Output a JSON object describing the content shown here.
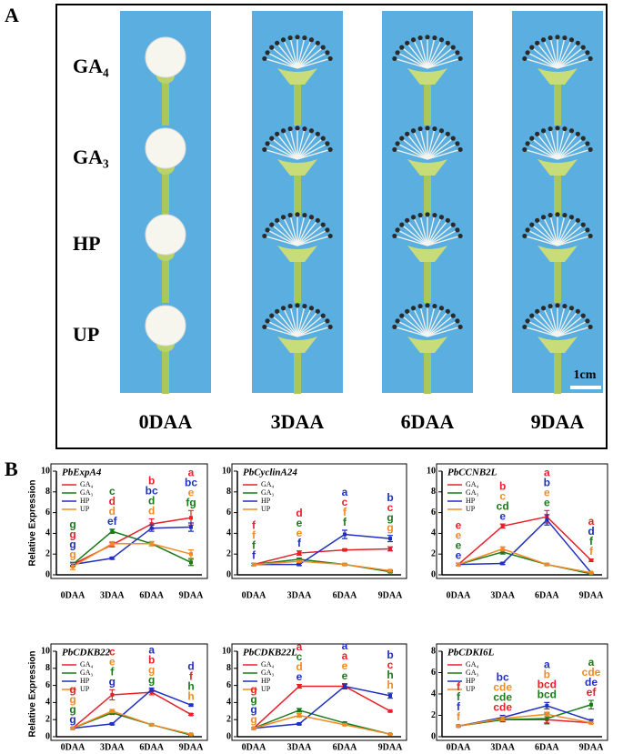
{
  "panel_a": {
    "label": "A",
    "rows": [
      "GA₄",
      "GA₃",
      "HP",
      "UP"
    ],
    "columns": [
      "0DAA",
      "3DAA",
      "6DAA",
      "9DAA"
    ],
    "scale": "1cm"
  },
  "panel_b_label": "B",
  "chart_data": [
    {
      "type": "line",
      "title": "PbExpA4",
      "ylabel": "Relative Expression",
      "categories": [
        "0DAA",
        "3DAA",
        "6DAA",
        "9DAA"
      ],
      "ylim": [
        0,
        10
      ],
      "yticks": [
        0,
        2,
        4,
        6,
        8,
        10
      ],
      "series": [
        {
          "name": "GA₄",
          "color": "#e8202a",
          "values": [
            1,
            2.9,
            4.9,
            5.5
          ],
          "errors": [
            0.2,
            0.2,
            0.5,
            0.7
          ]
        },
        {
          "name": "GA₃",
          "color": "#1a7a1a",
          "values": [
            1,
            4.2,
            3.0,
            1.2
          ],
          "errors": [
            0.2,
            0.2,
            0.2,
            0.3
          ]
        },
        {
          "name": "HP",
          "color": "#1f2fbf",
          "values": [
            1,
            1.6,
            4.5,
            4.6
          ],
          "errors": [
            0.1,
            0.1,
            0.3,
            0.4
          ]
        },
        {
          "name": "UP",
          "color": "#f08a24",
          "values": [
            0.8,
            3.0,
            3.0,
            2.0
          ],
          "errors": [
            0.3,
            0.2,
            0.2,
            0.4
          ]
        }
      ],
      "letters": [
        [
          {
            "text": "g",
            "color": "#1a7a1a"
          },
          {
            "text": "g",
            "color": "#e8202a"
          },
          {
            "text": "g",
            "color": "#1f2fbf"
          },
          {
            "text": "g",
            "color": "#f08a24"
          }
        ],
        [
          {
            "text": "c",
            "color": "#1a7a1a"
          },
          {
            "text": "d",
            "color": "#e8202a"
          },
          {
            "text": "d",
            "color": "#f08a24"
          },
          {
            "text": "ef",
            "color": "#1f2fbf"
          }
        ],
        [
          {
            "text": "b",
            "color": "#e8202a"
          },
          {
            "text": "bc",
            "color": "#1f2fbf"
          },
          {
            "text": "d",
            "color": "#1a7a1a"
          },
          {
            "text": "d",
            "color": "#f08a24"
          }
        ],
        [
          {
            "text": "a",
            "color": "#e8202a"
          },
          {
            "text": "bc",
            "color": "#1f2fbf"
          },
          {
            "text": "e",
            "color": "#f08a24"
          },
          {
            "text": "fg",
            "color": "#1a7a1a"
          }
        ]
      ]
    },
    {
      "type": "line",
      "title": "PbCyclinA24",
      "categories": [
        "0DAA",
        "3DAA",
        "6DAA",
        "9DAA"
      ],
      "ylim": [
        0,
        10
      ],
      "yticks": [
        0,
        2,
        4,
        6,
        8,
        10
      ],
      "series": [
        {
          "name": "GA₄",
          "color": "#e8202a",
          "values": [
            1,
            2.1,
            2.4,
            2.5
          ],
          "errors": [
            0.1,
            0.2,
            0.1,
            0.2
          ]
        },
        {
          "name": "GA₃",
          "color": "#1a7a1a",
          "values": [
            1,
            1.5,
            1.0,
            0.3
          ],
          "errors": [
            0.1,
            0.1,
            0.1,
            0.1
          ]
        },
        {
          "name": "HP",
          "color": "#1f2fbf",
          "values": [
            1,
            1.0,
            3.9,
            3.5
          ],
          "errors": [
            0.1,
            0.1,
            0.4,
            0.3
          ]
        },
        {
          "name": "UP",
          "color": "#f08a24",
          "values": [
            1,
            1.3,
            1.0,
            0.4
          ],
          "errors": [
            0.1,
            0.1,
            0.1,
            0.1
          ]
        }
      ],
      "letters": [
        [
          {
            "text": "f",
            "color": "#e8202a"
          },
          {
            "text": "f",
            "color": "#f08a24"
          },
          {
            "text": "f",
            "color": "#1a7a1a"
          },
          {
            "text": "f",
            "color": "#1f2fbf"
          }
        ],
        [
          {
            "text": "d",
            "color": "#e8202a"
          },
          {
            "text": "e",
            "color": "#1a7a1a"
          },
          {
            "text": "e",
            "color": "#f08a24"
          },
          {
            "text": "f",
            "color": "#1f2fbf"
          }
        ],
        [
          {
            "text": "a",
            "color": "#1f2fbf"
          },
          {
            "text": "c",
            "color": "#e8202a"
          },
          {
            "text": "f",
            "color": "#f08a24"
          },
          {
            "text": "f",
            "color": "#1a7a1a"
          }
        ],
        [
          {
            "text": "b",
            "color": "#1f2fbf"
          },
          {
            "text": "c",
            "color": "#e8202a"
          },
          {
            "text": "g",
            "color": "#1a7a1a"
          },
          {
            "text": "g",
            "color": "#f08a24"
          }
        ]
      ]
    },
    {
      "type": "line",
      "title": "PbCCNB2L",
      "categories": [
        "0DAA",
        "3DAA",
        "6DAA",
        "9DAA"
      ],
      "ylim": [
        0,
        10
      ],
      "yticks": [
        0,
        2,
        4,
        6,
        8,
        10
      ],
      "series": [
        {
          "name": "GA₄",
          "color": "#e8202a",
          "values": [
            1,
            4.7,
            5.6,
            1.4
          ],
          "errors": [
            0.1,
            0.2,
            0.6,
            0.1
          ]
        },
        {
          "name": "GA₃",
          "color": "#1a7a1a",
          "values": [
            1,
            2.2,
            1.0,
            0.1
          ],
          "errors": [
            0.1,
            0.2,
            0.1,
            0.05
          ]
        },
        {
          "name": "HP",
          "color": "#1f2fbf",
          "values": [
            1,
            1.1,
            5.3,
            0.2
          ],
          "errors": [
            0.1,
            0.1,
            0.5,
            0.05
          ]
        },
        {
          "name": "UP",
          "color": "#f08a24",
          "values": [
            1,
            2.5,
            1.0,
            0.2
          ],
          "errors": [
            0.1,
            0.2,
            0.1,
            0.05
          ]
        }
      ],
      "letters": [
        [
          {
            "text": "e",
            "color": "#e8202a"
          },
          {
            "text": "e",
            "color": "#f08a24"
          },
          {
            "text": "e",
            "color": "#1a7a1a"
          },
          {
            "text": "e",
            "color": "#1f2fbf"
          }
        ],
        [
          {
            "text": "b",
            "color": "#e8202a"
          },
          {
            "text": "c",
            "color": "#f08a24"
          },
          {
            "text": "cd",
            "color": "#1a7a1a"
          },
          {
            "text": "e",
            "color": "#1f2fbf"
          }
        ],
        [
          {
            "text": "a",
            "color": "#e8202a"
          },
          {
            "text": "b",
            "color": "#1f2fbf"
          },
          {
            "text": "e",
            "color": "#f08a24"
          },
          {
            "text": "e",
            "color": "#1a7a1a"
          }
        ],
        [
          {
            "text": "a",
            "color": "#e8202a"
          },
          {
            "text": "d",
            "color": "#1f2fbf"
          },
          {
            "text": "f",
            "color": "#1a7a1a"
          },
          {
            "text": "f",
            "color": "#f08a24"
          }
        ]
      ]
    },
    {
      "type": "line",
      "title": "PbCDKB22",
      "ylabel": "Relative Expression",
      "categories": [
        "0DAA",
        "3DAA",
        "6DAA",
        "9DAA"
      ],
      "ylim": [
        0,
        10
      ],
      "yticks": [
        0,
        2,
        4,
        6,
        8,
        10
      ],
      "series": [
        {
          "name": "GA₄",
          "color": "#e8202a",
          "values": [
            1,
            4.9,
            5.2,
            2.6
          ],
          "errors": [
            0.1,
            0.6,
            0.3,
            0.1
          ]
        },
        {
          "name": "GA₃",
          "color": "#1a7a1a",
          "values": [
            1,
            2.8,
            1.4,
            0.2
          ],
          "errors": [
            0.1,
            0.2,
            0.1,
            0.05
          ]
        },
        {
          "name": "HP",
          "color": "#1f2fbf",
          "values": [
            1,
            1.5,
            5.5,
            3.7
          ],
          "errors": [
            0.1,
            0.1,
            0.2,
            0.1
          ]
        },
        {
          "name": "UP",
          "color": "#f08a24",
          "values": [
            1,
            3.0,
            1.4,
            0.3
          ],
          "errors": [
            0.1,
            0.2,
            0.1,
            0.05
          ]
        }
      ],
      "letters": [
        [
          {
            "text": "g",
            "color": "#e8202a"
          },
          {
            "text": "g",
            "color": "#f08a24"
          },
          {
            "text": "g",
            "color": "#1a7a1a"
          },
          {
            "text": "g",
            "color": "#1f2fbf"
          }
        ],
        [
          {
            "text": "c",
            "color": "#e8202a"
          },
          {
            "text": "e",
            "color": "#f08a24"
          },
          {
            "text": "f",
            "color": "#1a7a1a"
          },
          {
            "text": "g",
            "color": "#1f2fbf"
          }
        ],
        [
          {
            "text": "a",
            "color": "#1f2fbf"
          },
          {
            "text": "b",
            "color": "#e8202a"
          },
          {
            "text": "g",
            "color": "#f08a24"
          },
          {
            "text": "g",
            "color": "#1a7a1a"
          }
        ],
        [
          {
            "text": "d",
            "color": "#1f2fbf"
          },
          {
            "text": "f",
            "color": "#e8202a"
          },
          {
            "text": "h",
            "color": "#1a7a1a"
          },
          {
            "text": "h",
            "color": "#f08a24"
          }
        ]
      ]
    },
    {
      "type": "line",
      "title": "PbCDKB22L",
      "categories": [
        "0DAA",
        "3DAA",
        "6DAA",
        "9DAA"
      ],
      "ylim": [
        0,
        10
      ],
      "yticks": [
        0,
        2,
        4,
        6,
        8,
        10
      ],
      "series": [
        {
          "name": "GA₄",
          "color": "#e8202a",
          "values": [
            1,
            5.9,
            5.9,
            3.0
          ],
          "errors": [
            0.1,
            0.2,
            0.2,
            0.1
          ]
        },
        {
          "name": "GA₃",
          "color": "#1a7a1a",
          "values": [
            1,
            3.1,
            1.6,
            0.3
          ],
          "errors": [
            0.1,
            0.2,
            0.1,
            0.05
          ]
        },
        {
          "name": "HP",
          "color": "#1f2fbf",
          "values": [
            1,
            1.5,
            5.9,
            4.8
          ],
          "errors": [
            0.1,
            0.1,
            0.3,
            0.3
          ]
        },
        {
          "name": "UP",
          "color": "#f08a24",
          "values": [
            1,
            2.5,
            1.4,
            0.3
          ],
          "errors": [
            0.1,
            0.2,
            0.1,
            0.05
          ]
        }
      ],
      "letters": [
        [
          {
            "text": "g",
            "color": "#e8202a"
          },
          {
            "text": "g",
            "color": "#1a7a1a"
          },
          {
            "text": "g",
            "color": "#1f2fbf"
          },
          {
            "text": "g",
            "color": "#f08a24"
          }
        ],
        [
          {
            "text": "a",
            "color": "#e8202a"
          },
          {
            "text": "c",
            "color": "#1a7a1a"
          },
          {
            "text": "d",
            "color": "#f08a24"
          },
          {
            "text": "e",
            "color": "#1f2fbf"
          }
        ],
        [
          {
            "text": "a",
            "color": "#1f2fbf"
          },
          {
            "text": "a",
            "color": "#e8202a"
          },
          {
            "text": "e",
            "color": "#f08a24"
          },
          {
            "text": "e",
            "color": "#1a7a1a"
          }
        ],
        [
          {
            "text": "b",
            "color": "#1f2fbf"
          },
          {
            "text": "c",
            "color": "#e8202a"
          },
          {
            "text": "h",
            "color": "#1a7a1a"
          },
          {
            "text": "h",
            "color": "#f08a24"
          }
        ]
      ]
    },
    {
      "type": "line",
      "title": "PbCDKI6L",
      "categories": [
        "0DAA",
        "3DAA",
        "6DAA",
        "9DAA"
      ],
      "ylim": [
        0,
        8
      ],
      "yticks": [
        0,
        2,
        4,
        6,
        8
      ],
      "series": [
        {
          "name": "GA₄",
          "color": "#e8202a",
          "values": [
            1,
            1.6,
            1.6,
            1.3
          ],
          "errors": [
            0.1,
            0.2,
            0.3,
            0.1
          ]
        },
        {
          "name": "GA₃",
          "color": "#1a7a1a",
          "values": [
            1,
            1.6,
            1.7,
            3.0
          ],
          "errors": [
            0.1,
            0.2,
            0.5,
            0.4
          ]
        },
        {
          "name": "HP",
          "color": "#1f2fbf",
          "values": [
            1,
            1.8,
            2.9,
            1.5
          ],
          "errors": [
            0.1,
            0.2,
            0.3,
            0.1
          ]
        },
        {
          "name": "UP",
          "color": "#f08a24",
          "values": [
            1,
            1.7,
            2.1,
            1.3
          ],
          "errors": [
            0.1,
            0.2,
            0.2,
            0.1
          ]
        }
      ],
      "letters": [
        [
          {
            "text": "f",
            "color": "#e8202a"
          },
          {
            "text": "f",
            "color": "#1a7a1a"
          },
          {
            "text": "f",
            "color": "#1f2fbf"
          },
          {
            "text": "f",
            "color": "#f08a24"
          }
        ],
        [
          {
            "text": "bc",
            "color": "#1f2fbf"
          },
          {
            "text": "cde",
            "color": "#f08a24"
          },
          {
            "text": "cde",
            "color": "#1a7a1a"
          },
          {
            "text": "cde",
            "color": "#e8202a"
          }
        ],
        [
          {
            "text": "a",
            "color": "#1f2fbf"
          },
          {
            "text": "b",
            "color": "#f08a24"
          },
          {
            "text": "bcd",
            "color": "#e8202a"
          },
          {
            "text": "bcd",
            "color": "#1a7a1a"
          }
        ],
        [
          {
            "text": "a",
            "color": "#1a7a1a"
          },
          {
            "text": "cde",
            "color": "#f08a24"
          },
          {
            "text": "de",
            "color": "#1f2fbf"
          },
          {
            "text": "ef",
            "color": "#e8202a"
          }
        ]
      ]
    }
  ]
}
